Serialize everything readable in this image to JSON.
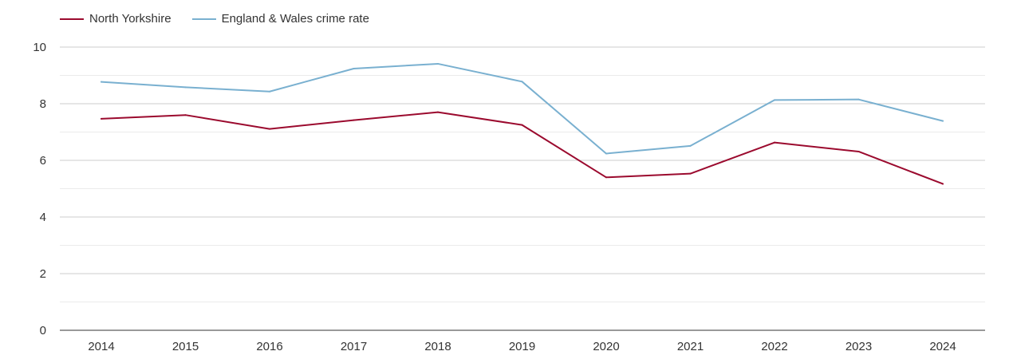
{
  "legend": {
    "items": [
      {
        "label": "North Yorkshire",
        "color": "#9b0a2e"
      },
      {
        "label": "England & Wales crime rate",
        "color": "#79b0d0"
      }
    ]
  },
  "chart_data": {
    "type": "line",
    "categories": [
      "2014",
      "2015",
      "2016",
      "2017",
      "2018",
      "2019",
      "2020",
      "2021",
      "2022",
      "2023",
      "2024"
    ],
    "series": [
      {
        "name": "North Yorkshire",
        "color": "#9b0a2e",
        "values": [
          7.47,
          7.6,
          7.11,
          7.42,
          7.7,
          7.25,
          5.4,
          5.53,
          6.63,
          6.31,
          5.17
        ]
      },
      {
        "name": "England & Wales crime rate",
        "color": "#79b0d0",
        "values": [
          8.77,
          8.58,
          8.43,
          9.24,
          9.41,
          8.78,
          6.24,
          6.51,
          8.13,
          8.15,
          7.39
        ]
      }
    ],
    "ylim": [
      0,
      10
    ],
    "yticks": [
      0,
      2,
      4,
      6,
      8,
      10
    ],
    "grid": true,
    "legend_position": "top-left",
    "title": "",
    "xlabel": "",
    "ylabel": ""
  }
}
